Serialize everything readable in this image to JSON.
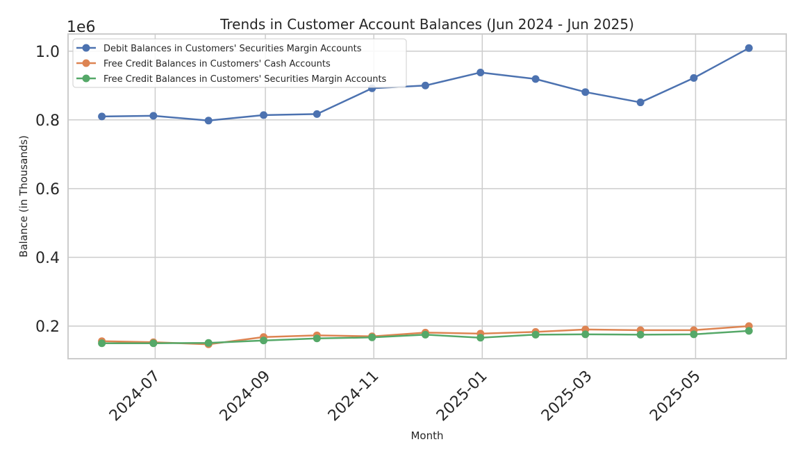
{
  "chart_data": {
    "type": "line",
    "title": "Trends in Customer Account Balances (Jun 2024 - Jun 2025)",
    "xlabel": "Month",
    "ylabel": "Balance (in Thousands)",
    "y_offset_label": "1e6",
    "y_scale_factor": 1000000,
    "ylim": [
      0.105,
      1.05
    ],
    "y_ticks": [
      0.2,
      0.4,
      0.6,
      0.8,
      1.0
    ],
    "y_tick_labels": [
      "0.2",
      "0.4",
      "0.6",
      "0.8",
      "1.0"
    ],
    "xlim": [
      "2024-05-13",
      "2025-06-21"
    ],
    "x_ticks": [
      "2024-07-01",
      "2024-09-01",
      "2024-11-01",
      "2025-01-01",
      "2025-03-01",
      "2025-05-01"
    ],
    "x_tick_labels": [
      "2024-07",
      "2024-09",
      "2024-11",
      "2025-01",
      "2025-03",
      "2025-05"
    ],
    "x": [
      "2024-06-01",
      "2024-06-30",
      "2024-07-31",
      "2024-08-31",
      "2024-09-30",
      "2024-10-31",
      "2024-11-30",
      "2024-12-31",
      "2025-01-31",
      "2025-02-28",
      "2025-03-31",
      "2025-04-30",
      "2025-05-31"
    ],
    "grid": true,
    "legend_position": "top-left",
    "series": [
      {
        "name": "Debit Balances in Customers' Securities Margin Accounts",
        "color": "#4c72b0",
        "values": [
          0.81,
          0.812,
          0.798,
          0.814,
          0.817,
          0.892,
          0.9,
          0.938,
          0.919,
          0.881,
          0.851,
          0.922,
          1.009
        ]
      },
      {
        "name": "Free Credit Balances in Customers' Cash Accounts",
        "color": "#dd8452",
        "values": [
          0.156,
          0.153,
          0.147,
          0.168,
          0.173,
          0.17,
          0.181,
          0.178,
          0.183,
          0.19,
          0.188,
          0.188,
          0.2
        ]
      },
      {
        "name": "Free Credit Balances in Customers' Securities Margin Accounts",
        "color": "#55a868",
        "values": [
          0.15,
          0.15,
          0.151,
          0.158,
          0.164,
          0.167,
          0.175,
          0.166,
          0.175,
          0.176,
          0.175,
          0.176,
          0.186
        ]
      }
    ]
  }
}
